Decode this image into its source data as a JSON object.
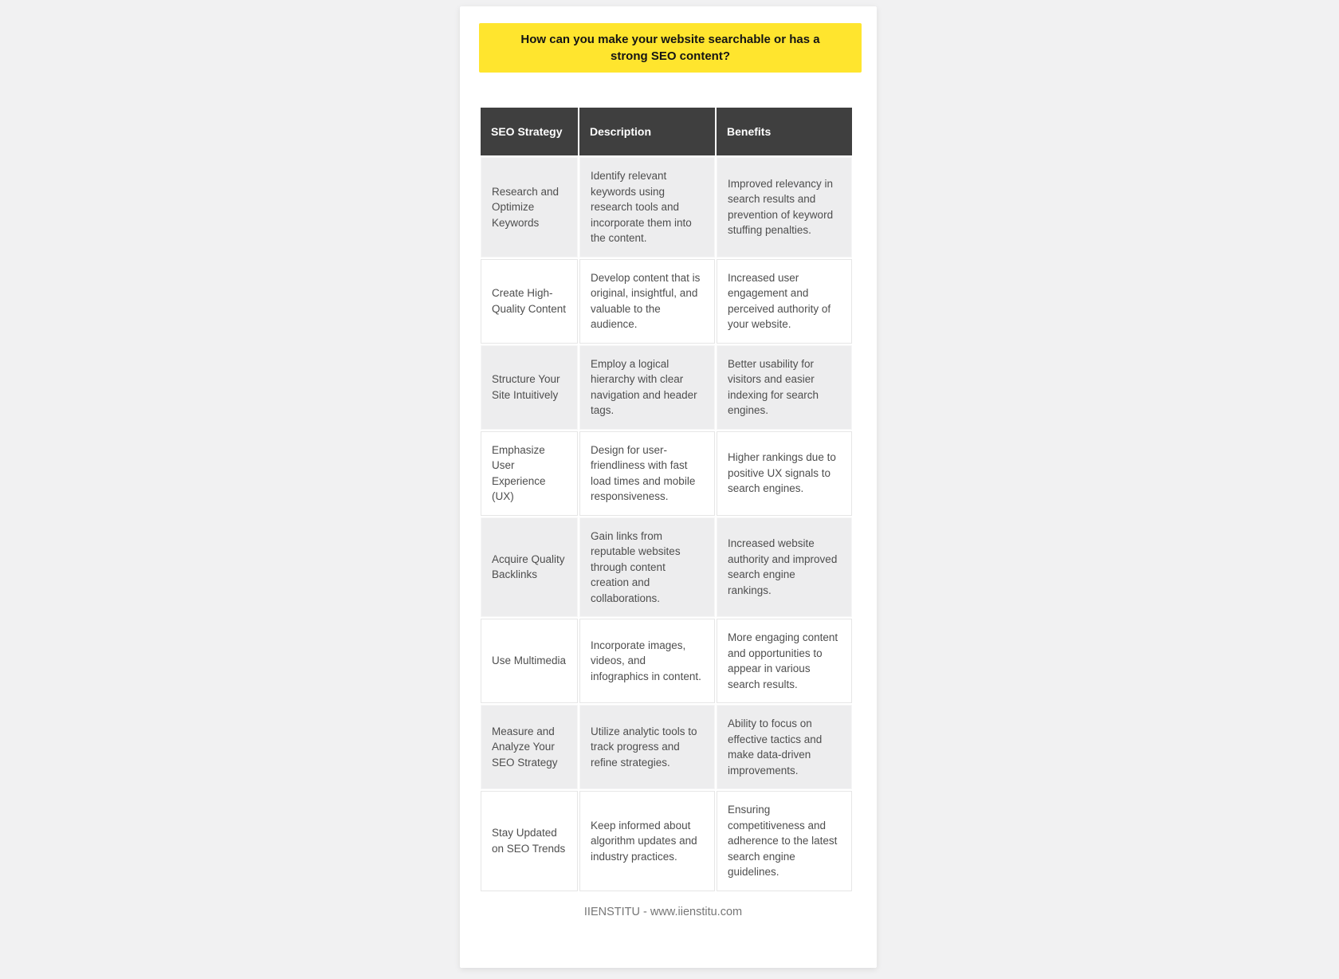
{
  "title": "How can you make your website searchable or has a strong SEO content?",
  "footer": "IIENSTITU - www.iienstitu.com",
  "colors": {
    "page_background": "#f1f1f2",
    "title_banner": "#ffe52e",
    "table_header": "#3f3f3f",
    "row_stripe": "#ededee",
    "cell_text": "#4e4e4e"
  },
  "table": {
    "columns": [
      "SEO Strategy",
      "Description",
      "Benefits"
    ],
    "rows": [
      {
        "strategy": "Research and Optimize Keywords",
        "description": "Identify relevant keywords using research tools and incorporate them into the content.",
        "benefits": "Improved relevancy in search results and prevention of keyword stuffing penalties."
      },
      {
        "strategy": "Create High-Quality Content",
        "description": "Develop content that is original, insightful, and valuable to the audience.",
        "benefits": "Increased user engagement and perceived authority of your website."
      },
      {
        "strategy": "Structure Your Site Intuitively",
        "description": "Employ a logical hierarchy with clear navigation and header tags.",
        "benefits": "Better usability for visitors and easier indexing for search engines."
      },
      {
        "strategy": "Emphasize User Experience (UX)",
        "description": "Design for user-friendliness with fast load times and mobile responsiveness.",
        "benefits": "Higher rankings due to positive UX signals to search engines."
      },
      {
        "strategy": "Acquire Quality Backlinks",
        "description": "Gain links from reputable websites through content creation and collaborations.",
        "benefits": "Increased website authority and improved search engine rankings."
      },
      {
        "strategy": "Use Multimedia",
        "description": "Incorporate images, videos, and infographics in content.",
        "benefits": "More engaging content and opportunities to appear in various search results."
      },
      {
        "strategy": "Measure and Analyze Your SEO Strategy",
        "description": "Utilize analytic tools to track progress and refine strategies.",
        "benefits": "Ability to focus on effective tactics and make data-driven improvements."
      },
      {
        "strategy": "Stay Updated on SEO Trends",
        "description": "Keep informed about algorithm updates and industry practices.",
        "benefits": "Ensuring competitiveness and adherence to the latest search engine guidelines."
      }
    ]
  }
}
